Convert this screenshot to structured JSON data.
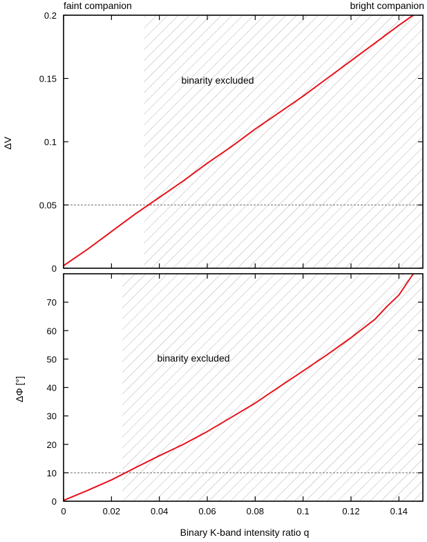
{
  "figure": {
    "left_note": "faint companion",
    "right_note": "bright companion",
    "xlabel": "Binary K-band intensity ratio q"
  },
  "chart_data": [
    {
      "type": "line",
      "panel": "top",
      "ylabel": "ΔV",
      "xlim": [
        0,
        0.15
      ],
      "ylim": [
        0,
        0.2
      ],
      "x_ticks": [
        0,
        0.02,
        0.04,
        0.06,
        0.08,
        0.1,
        0.12,
        0.14
      ],
      "y_ticks": [
        0,
        0.05,
        0.1,
        0.15,
        0.2
      ],
      "y_tick_labels": [
        "0",
        "0.05",
        "0.1",
        "0.15",
        "0.2"
      ],
      "x_tick_labels_shown": false,
      "threshold": 0.05,
      "excluded_from": 0.0335,
      "annotation": "binarity excluded",
      "line_color": "#e8101a",
      "x": [
        0.0,
        0.01,
        0.02,
        0.03,
        0.04,
        0.05,
        0.06,
        0.07,
        0.08,
        0.09,
        0.1,
        0.11,
        0.12,
        0.13,
        0.14,
        0.146
      ],
      "y": [
        0.002,
        0.015,
        0.029,
        0.043,
        0.056,
        0.069,
        0.083,
        0.096,
        0.11,
        0.123,
        0.136,
        0.15,
        0.164,
        0.178,
        0.192,
        0.2
      ]
    },
    {
      "type": "line",
      "panel": "bottom",
      "ylabel": "ΔΦ [°]",
      "xlim": [
        0,
        0.15
      ],
      "ylim": [
        0,
        80
      ],
      "x_ticks": [
        0,
        0.02,
        0.04,
        0.06,
        0.08,
        0.1,
        0.12,
        0.14
      ],
      "x_tick_labels": [
        "0",
        "0.02",
        "0.04",
        "0.06",
        "0.08",
        "0.1",
        "0.12",
        "0.14"
      ],
      "y_ticks": [
        0,
        10,
        20,
        30,
        40,
        50,
        60,
        70
      ],
      "y_tick_labels": [
        "0",
        "10",
        "20",
        "30",
        "40",
        "50",
        "60",
        "70"
      ],
      "threshold": 10,
      "excluded_from": 0.0245,
      "annotation": "binarity excluded",
      "line_color": "#e8101a",
      "x": [
        0.0,
        0.01,
        0.02,
        0.03,
        0.04,
        0.05,
        0.06,
        0.07,
        0.08,
        0.09,
        0.1,
        0.11,
        0.12,
        0.13,
        0.135,
        0.14,
        0.146
      ],
      "y": [
        0.3,
        3.8,
        7.5,
        11.8,
        16.0,
        20.0,
        24.5,
        29.5,
        34.5,
        40.2,
        45.8,
        51.5,
        57.5,
        64.0,
        68.5,
        72.5,
        80.0
      ]
    }
  ]
}
